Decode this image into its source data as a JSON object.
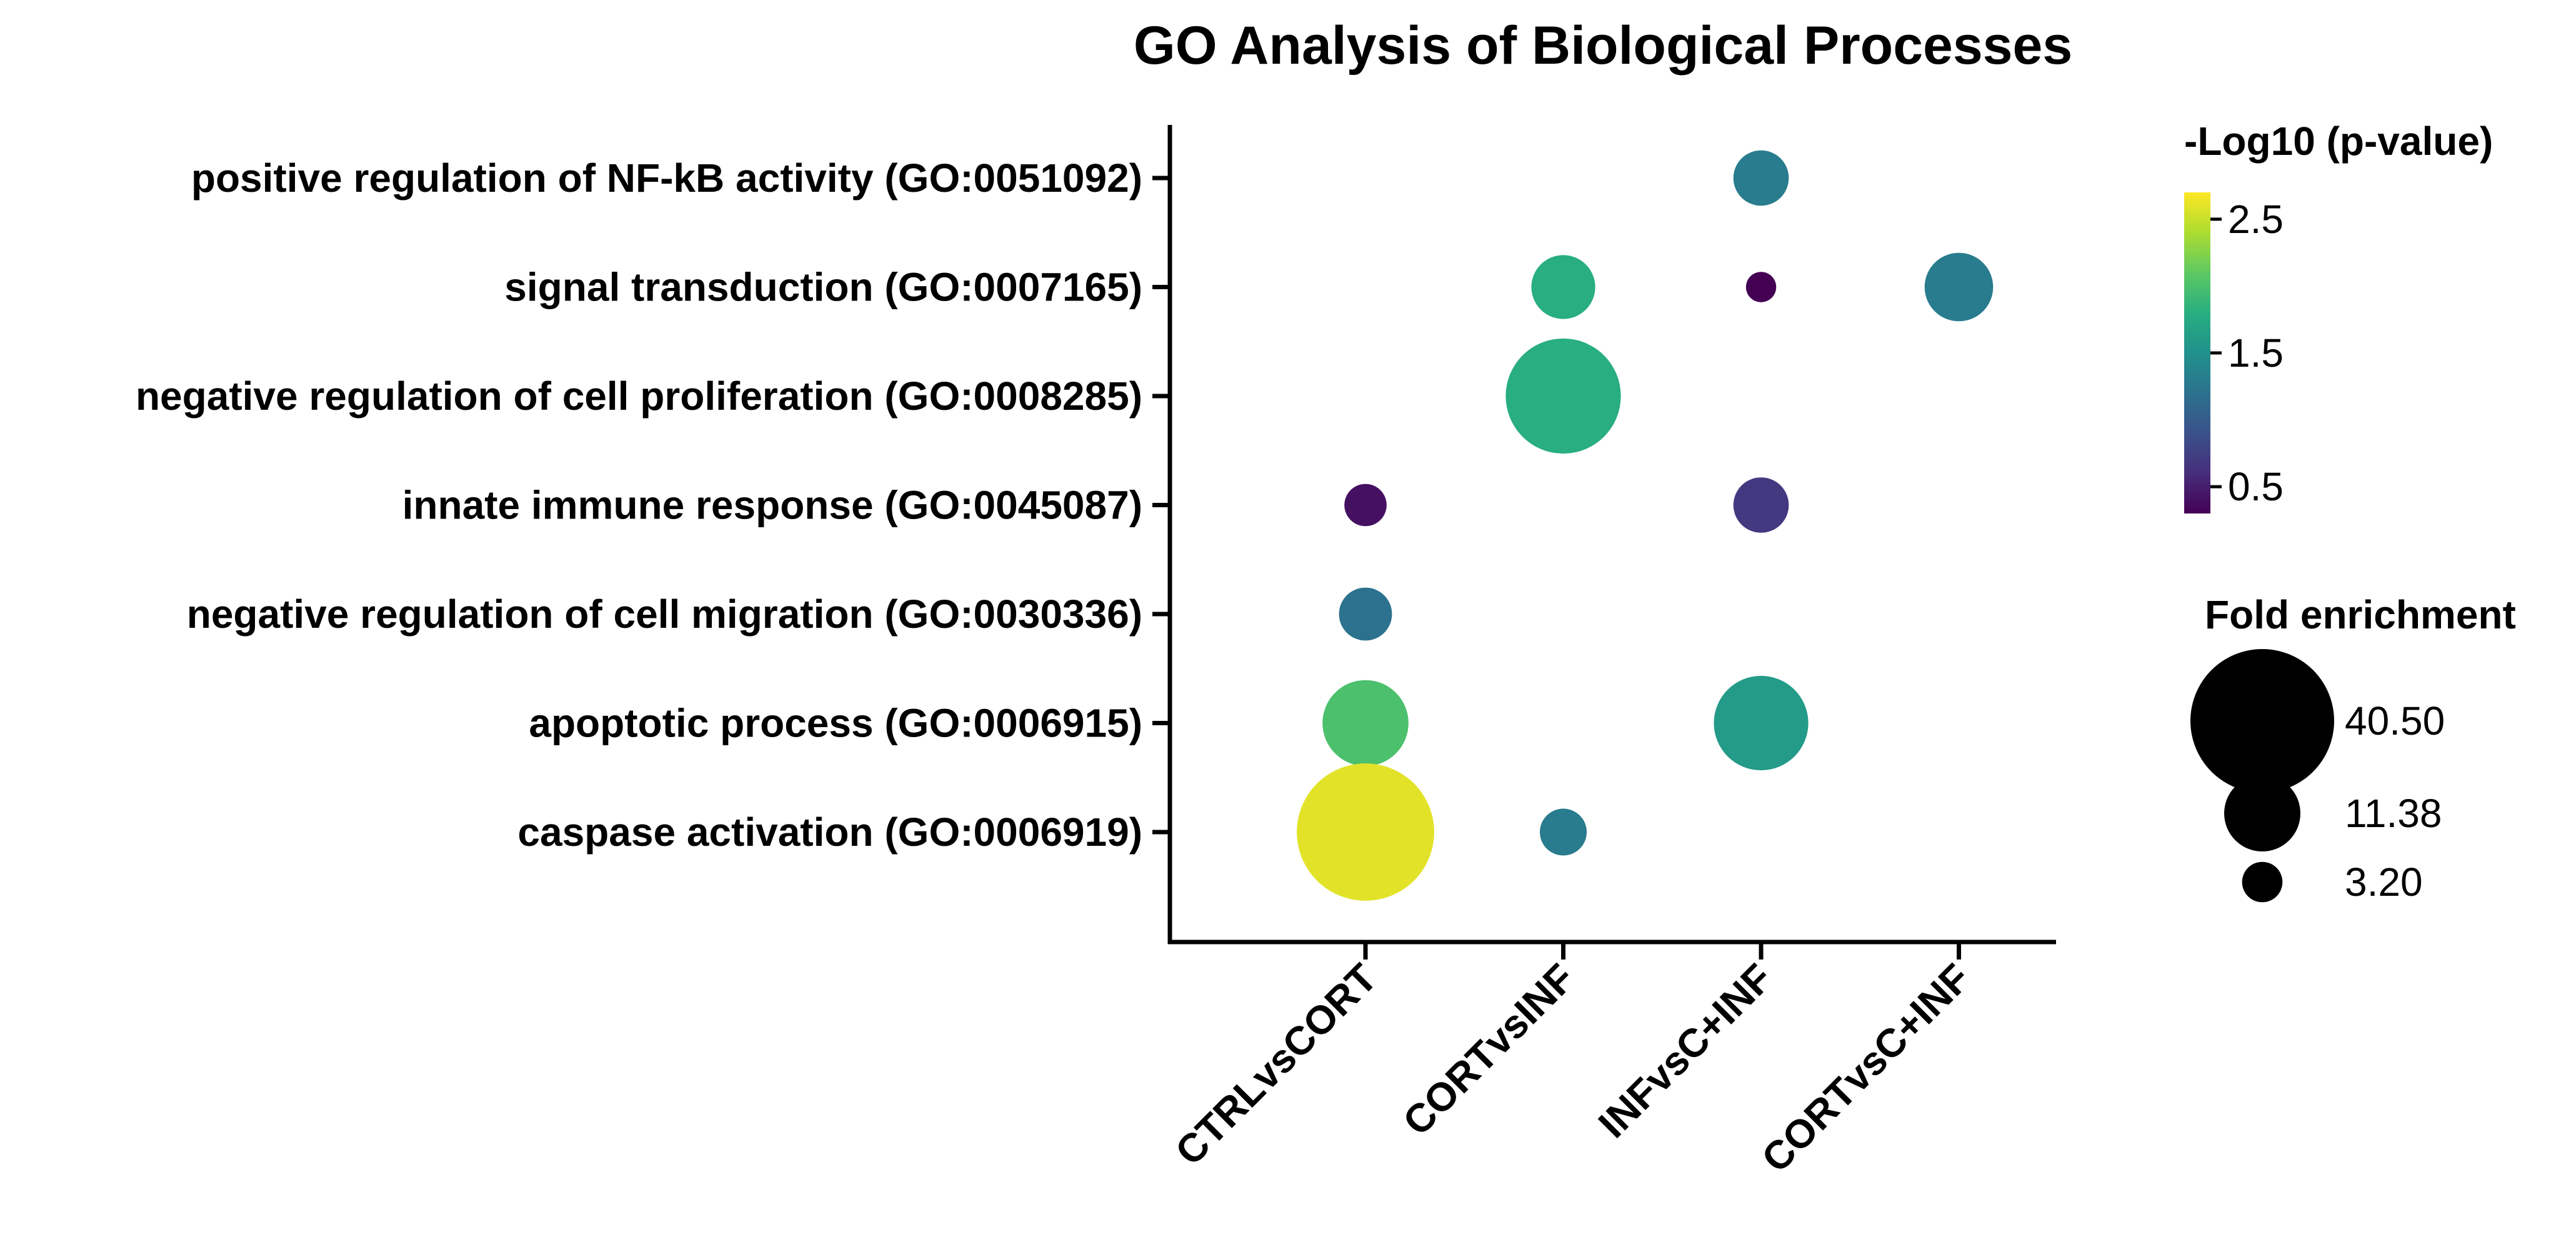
{
  "chart_data": {
    "type": "bubble",
    "title": "GO Analysis of Biological Processes",
    "xlabel": "",
    "ylabel": "",
    "categories": [
      "CTRLvsCORT",
      "CORTvsINF",
      "INFvsC+INF",
      "CORTvsC+INF"
    ],
    "terms": [
      "positive regulation of NF-kB activity (GO:0051092)",
      "signal transduction (GO:0007165)",
      "negative regulation of cell proliferation (GO:0008285)",
      "innate immune response (GO:0045087)",
      "negative regulation of cell migration (GO:0030336)",
      "apoptotic process (GO:0006915)",
      "caspase activation (GO:0006919)"
    ],
    "points": [
      {
        "term": "positive regulation of NF-kB activity (GO:0051092)",
        "comparison": "INFvsC+INF",
        "fold_enrichment": 6.0,
        "neg_log10_p": 1.3
      },
      {
        "term": "signal transduction (GO:0007165)",
        "comparison": "CORTvsINF",
        "fold_enrichment": 8.0,
        "neg_log10_p": 1.8
      },
      {
        "term": "signal transduction (GO:0007165)",
        "comparison": "INFvsC+INF",
        "fold_enrichment": 1.8,
        "neg_log10_p": 0.3
      },
      {
        "term": "signal transduction (GO:0007165)",
        "comparison": "CORTvsC+INF",
        "fold_enrichment": 9.2,
        "neg_log10_p": 1.3
      },
      {
        "term": "negative regulation of cell proliferation (GO:0008285)",
        "comparison": "CORTvsINF",
        "fold_enrichment": 26.0,
        "neg_log10_p": 1.8
      },
      {
        "term": "innate immune response (GO:0045087)",
        "comparison": "CTRLvsCORT",
        "fold_enrichment": 3.5,
        "neg_log10_p": 0.4
      },
      {
        "term": "innate immune response (GO:0045087)",
        "comparison": "INFvsC+INF",
        "fold_enrichment": 6.0,
        "neg_log10_p": 0.7
      },
      {
        "term": "negative regulation of cell migration (GO:0030336)",
        "comparison": "CTRLvsCORT",
        "fold_enrichment": 5.5,
        "neg_log10_p": 1.2
      },
      {
        "term": "apoptotic process (GO:0006915)",
        "comparison": "CTRLvsCORT",
        "fold_enrichment": 14.5,
        "neg_log10_p": 2.0
      },
      {
        "term": "apoptotic process (GO:0006915)",
        "comparison": "INFvsC+INF",
        "fold_enrichment": 17.5,
        "neg_log10_p": 1.6
      },
      {
        "term": "caspase activation (GO:0006919)",
        "comparison": "CTRLvsCORT",
        "fold_enrichment": 37.0,
        "neg_log10_p": 2.6
      },
      {
        "term": "caspase activation (GO:0006919)",
        "comparison": "CORTvsINF",
        "fold_enrichment": 4.3,
        "neg_log10_p": 1.3
      }
    ],
    "color_scale": {
      "title": "-Log10 (p-value)",
      "min": 0.3,
      "max": 2.7,
      "ticks": [
        2.5,
        1.5,
        0.5
      ],
      "tick_labels": [
        "2.5",
        "1.5",
        "0.5"
      ],
      "palette": [
        "#440154",
        "#472d7b",
        "#3b528b",
        "#2c728e",
        "#21918c",
        "#28ae80",
        "#5ec962",
        "#addc30",
        "#fde725"
      ]
    },
    "size_legend": {
      "title": "Fold enrichment",
      "values": [
        40.5,
        11.38,
        3.2
      ],
      "labels": [
        "40.50",
        "11.38",
        "3.20"
      ]
    }
  }
}
